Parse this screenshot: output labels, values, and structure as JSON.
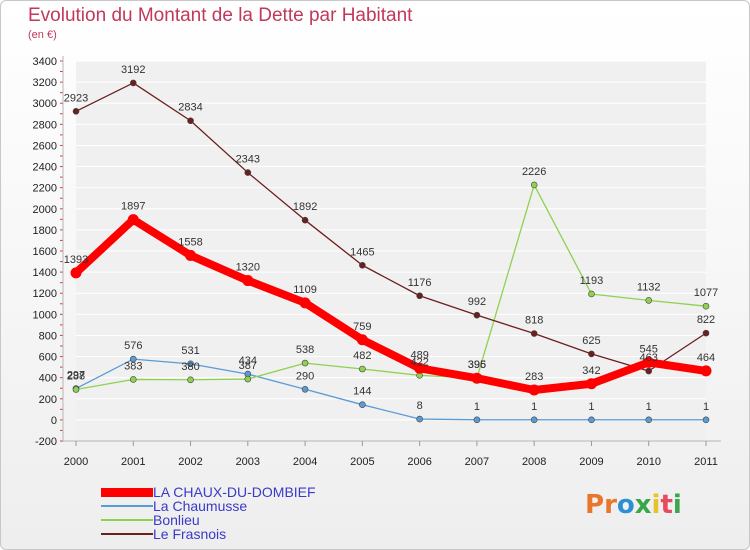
{
  "header": {
    "title": "Evolution du Montant de la Dette par Habitant",
    "subtitle": "(en €)"
  },
  "brand": {
    "letters": [
      {
        "char": "P",
        "color": "#e8762b"
      },
      {
        "char": "r",
        "color": "#e8762b"
      },
      {
        "char": "o",
        "color": "#2c8fd6"
      },
      {
        "char": "x",
        "color": "#3aa64a"
      },
      {
        "char": "i",
        "color": "#e8c22b"
      },
      {
        "char": "t",
        "color": "#e84a5f"
      },
      {
        "char": "i",
        "color": "#3aa64a"
      }
    ]
  },
  "chart_data": {
    "type": "line",
    "title": "Evolution du Montant de la Dette par Habitant",
    "subtitle": "(en €)",
    "xlabel": "",
    "ylabel": "",
    "x": [
      "2000",
      "2001",
      "2002",
      "2003",
      "2004",
      "2005",
      "2006",
      "2007",
      "2008",
      "2009",
      "2010",
      "2011"
    ],
    "yticks": [
      -200,
      0,
      200,
      400,
      600,
      800,
      1000,
      1200,
      1400,
      1600,
      1800,
      2000,
      2200,
      2400,
      2600,
      2800,
      3000,
      3200,
      3400
    ],
    "ylim": [
      -200,
      3400
    ],
    "grid": "horizontal",
    "legend_position": "bottom-left",
    "series": [
      {
        "name": "LA CHAUX-DU-DOMBIEF",
        "color": "#ff0000",
        "emphasis": true,
        "values": [
          1393,
          1897,
          1558,
          1320,
          1109,
          759,
          489,
          395,
          283,
          342,
          545,
          464
        ]
      },
      {
        "name": "La Chaumusse",
        "color": "#5b9bd5",
        "emphasis": false,
        "values": [
          297,
          576,
          531,
          434,
          290,
          144,
          8,
          1,
          1,
          1,
          1,
          1
        ]
      },
      {
        "name": "Bonlieu",
        "color": "#8fd14f",
        "emphasis": false,
        "values": [
          288,
          383,
          380,
          387,
          538,
          482,
          422,
          396,
          2226,
          1193,
          1132,
          1077
        ]
      },
      {
        "name": "Le Frasnois",
        "color": "#6b1f1f",
        "emphasis": false,
        "values": [
          2923,
          3192,
          2834,
          2343,
          1892,
          1465,
          1176,
          992,
          818,
          625,
          463,
          822
        ]
      }
    ]
  }
}
